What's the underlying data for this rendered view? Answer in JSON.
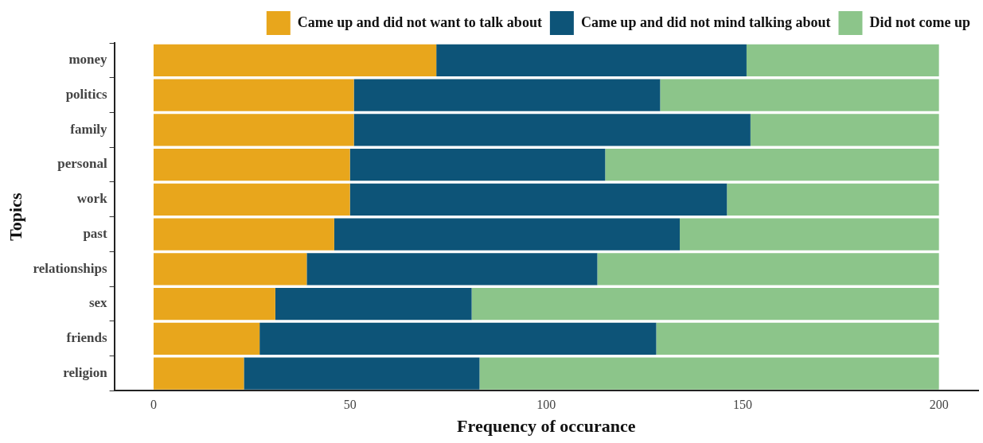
{
  "chart_data": {
    "type": "bar",
    "orientation": "horizontal",
    "stacked": true,
    "xlabel": "Frequency of occurance",
    "ylabel": "Topics",
    "categories": [
      "money",
      "politics",
      "family",
      "personal",
      "work",
      "past",
      "relationships",
      "sex",
      "friends",
      "religion"
    ],
    "series": [
      {
        "name": "Came up and did not want to talk about",
        "color": "#e8a61c",
        "values": [
          72,
          51,
          51,
          50,
          50,
          46,
          39,
          31,
          27,
          23
        ]
      },
      {
        "name": "Came up and did not mind talking about",
        "color": "#0d5478",
        "values": [
          79,
          78,
          101,
          65,
          96,
          88,
          74,
          50,
          101,
          60
        ]
      },
      {
        "name": "Did not come up",
        "color": "#8cc58a",
        "values": [
          49,
          71,
          48,
          85,
          54,
          66,
          87,
          119,
          72,
          117
        ]
      }
    ],
    "xlim": [
      -10,
      210
    ],
    "xticks": [
      0,
      50,
      100,
      150,
      200
    ],
    "grid": false,
    "legend": "top right"
  }
}
